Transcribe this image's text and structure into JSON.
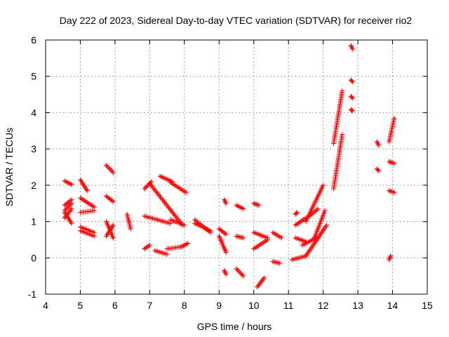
{
  "chart_data": {
    "type": "scatter",
    "title": "Day 222 of 2023, Sidereal Day-to-day VTEC variation (SDTVAR) for receiver rio2",
    "xlabel": "GPS time / hours",
    "ylabel": "SDTVAR / TECUs",
    "xlim": [
      4,
      15
    ],
    "ylim": [
      -1,
      6
    ],
    "x_ticks": [
      "4",
      "5",
      "6",
      "7",
      "8",
      "9",
      "10",
      "11",
      "12",
      "13",
      "14",
      "15"
    ],
    "y_ticks": [
      "-1",
      "0",
      "1",
      "2",
      "3",
      "4",
      "5",
      "6"
    ],
    "grid": true,
    "marker": "+",
    "color": "#ff0000",
    "series": [
      {
        "name": "SDTVAR",
        "segments": [
          [
            [
              4.55,
              2.12
            ],
            [
              4.75,
              2.02
            ]
          ],
          [
            [
              4.55,
              1.45
            ],
            [
              4.75,
              1.6
            ]
          ],
          [
            [
              4.55,
              1.3
            ],
            [
              4.75,
              1.5
            ]
          ],
          [
            [
              4.55,
              1.25
            ],
            [
              4.75,
              0.95
            ]
          ],
          [
            [
              4.55,
              1.1
            ],
            [
              4.75,
              1.35
            ]
          ],
          [
            [
              5.0,
              2.15
            ],
            [
              5.2,
              1.85
            ]
          ],
          [
            [
              5.0,
              1.65
            ],
            [
              5.4,
              1.4
            ]
          ],
          [
            [
              5.0,
              1.25
            ],
            [
              5.4,
              1.3
            ]
          ],
          [
            [
              5.0,
              0.85
            ],
            [
              5.4,
              0.7
            ]
          ],
          [
            [
              5.0,
              0.75
            ],
            [
              5.4,
              0.6
            ]
          ],
          [
            [
              5.75,
              2.55
            ],
            [
              5.95,
              2.35
            ]
          ],
          [
            [
              5.75,
              1.7
            ],
            [
              5.95,
              1.55
            ]
          ],
          [
            [
              5.75,
              1.0
            ],
            [
              5.95,
              0.55
            ]
          ],
          [
            [
              5.75,
              0.6
            ],
            [
              5.95,
              0.9
            ]
          ],
          [
            [
              6.35,
              1.2
            ],
            [
              6.45,
              0.8
            ]
          ],
          [
            [
              6.85,
              1.9
            ],
            [
              7.05,
              2.1
            ]
          ],
          [
            [
              6.85,
              1.15
            ],
            [
              7.6,
              0.95
            ]
          ],
          [
            [
              6.85,
              0.25
            ],
            [
              7.0,
              0.35
            ]
          ],
          [
            [
              7.0,
              2.05
            ],
            [
              7.95,
              0.9
            ]
          ],
          [
            [
              7.15,
              0.2
            ],
            [
              7.5,
              0.1
            ]
          ],
          [
            [
              7.3,
              2.25
            ],
            [
              7.65,
              2.1
            ]
          ],
          [
            [
              7.5,
              0.25
            ],
            [
              7.9,
              0.3
            ]
          ],
          [
            [
              7.6,
              2.08
            ],
            [
              8.05,
              1.8
            ]
          ],
          [
            [
              7.6,
              1.05
            ],
            [
              8.0,
              0.9
            ]
          ],
          [
            [
              7.9,
              0.3
            ],
            [
              8.1,
              0.4
            ]
          ],
          [
            [
              8.3,
              1.05
            ],
            [
              8.75,
              0.7
            ]
          ],
          [
            [
              8.3,
              0.95
            ],
            [
              8.75,
              0.75
            ]
          ],
          [
            [
              9.0,
              0.6
            ],
            [
              9.2,
              0.15
            ]
          ],
          [
            [
              9.0,
              0.8
            ],
            [
              9.2,
              0.65
            ]
          ],
          [
            [
              9.15,
              1.6
            ],
            [
              9.2,
              1.5
            ]
          ],
          [
            [
              9.15,
              -0.35
            ],
            [
              9.2,
              -0.45
            ]
          ],
          [
            [
              9.5,
              1.45
            ],
            [
              9.7,
              1.35
            ]
          ],
          [
            [
              9.5,
              0.6
            ],
            [
              9.7,
              0.55
            ]
          ],
          [
            [
              9.5,
              -0.3
            ],
            [
              9.7,
              -0.5
            ]
          ],
          [
            [
              10.0,
              1.5
            ],
            [
              10.15,
              1.45
            ]
          ],
          [
            [
              10.0,
              0.7
            ],
            [
              10.4,
              0.55
            ]
          ],
          [
            [
              10.0,
              0.25
            ],
            [
              10.4,
              0.5
            ]
          ],
          [
            [
              10.1,
              -0.8
            ],
            [
              10.3,
              -0.55
            ]
          ],
          [
            [
              10.55,
              0.7
            ],
            [
              10.8,
              0.55
            ]
          ],
          [
            [
              10.55,
              -0.1
            ],
            [
              10.75,
              -0.15
            ]
          ],
          [
            [
              11.1,
              -0.05
            ],
            [
              11.5,
              0.05
            ]
          ],
          [
            [
              11.2,
              1.2
            ],
            [
              11.25,
              1.25
            ]
          ],
          [
            [
              11.2,
              0.55
            ],
            [
              11.5,
              0.45
            ]
          ],
          [
            [
              11.2,
              0.9
            ],
            [
              11.5,
              1.1
            ]
          ],
          [
            [
              11.4,
              0.35
            ],
            [
              11.8,
              0.55
            ]
          ],
          [
            [
              11.5,
              0.05
            ],
            [
              12.1,
              0.9
            ]
          ],
          [
            [
              11.5,
              1.0
            ],
            [
              12.0,
              2.0
            ]
          ],
          [
            [
              11.6,
              1.15
            ],
            [
              11.85,
              1.35
            ]
          ],
          [
            [
              11.75,
              0.55
            ],
            [
              12.05,
              1.3
            ]
          ],
          [
            [
              12.3,
              1.9
            ],
            [
              12.55,
              3.4
            ]
          ],
          [
            [
              12.3,
              3.15
            ],
            [
              12.55,
              4.6
            ]
          ],
          [
            [
              12.8,
              5.85
            ],
            [
              12.85,
              5.75
            ]
          ],
          [
            [
              12.8,
              4.9
            ],
            [
              12.85,
              4.85
            ]
          ],
          [
            [
              12.8,
              4.45
            ],
            [
              12.85,
              4.4
            ]
          ],
          [
            [
              12.8,
              4.08
            ],
            [
              12.85,
              4.05
            ]
          ],
          [
            [
              13.55,
              3.2
            ],
            [
              13.6,
              3.1
            ]
          ],
          [
            [
              13.55,
              2.45
            ],
            [
              13.6,
              2.4
            ]
          ],
          [
            [
              13.9,
              3.2
            ],
            [
              14.05,
              3.85
            ]
          ],
          [
            [
              13.9,
              2.65
            ],
            [
              14.05,
              2.6
            ]
          ],
          [
            [
              13.9,
              1.85
            ],
            [
              14.05,
              1.8
            ]
          ],
          [
            [
              13.9,
              -0.05
            ],
            [
              13.95,
              0.05
            ]
          ]
        ]
      }
    ]
  }
}
